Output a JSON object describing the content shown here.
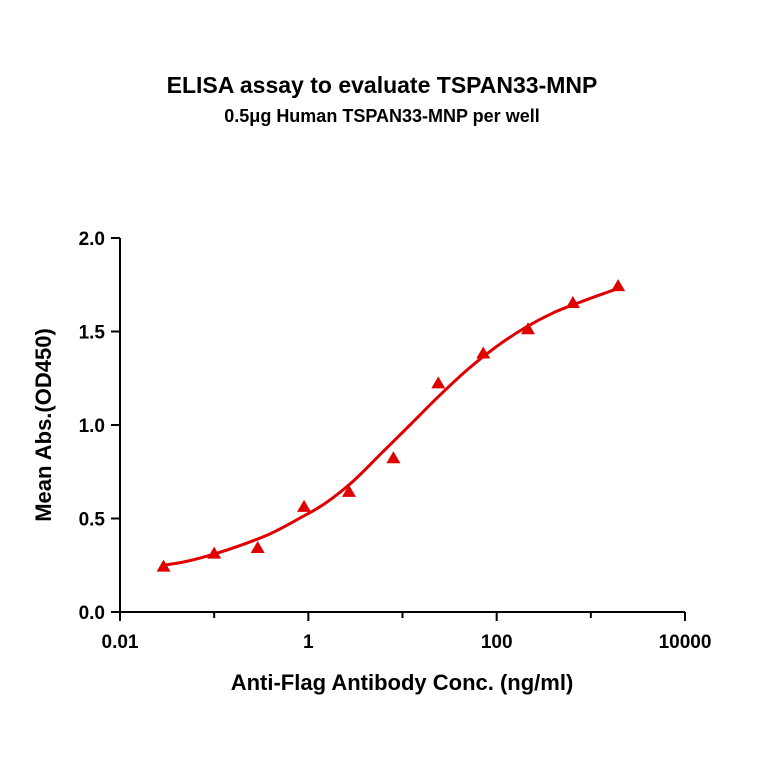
{
  "chart_data": {
    "type": "scatter",
    "title": "ELISA assay to evaluate TSPAN33-MNP",
    "subtitle": "0.5μg Human TSPAN33-MNP per well",
    "xlabel": "Anti-Flag Antibody Conc. (ng/ml)",
    "ylabel": "Mean Abs.(OD450)",
    "xscale": "log",
    "xlim": [
      0.01,
      10000
    ],
    "ylim": [
      0.0,
      2.0
    ],
    "xticks": [
      "0.01",
      "1",
      "100",
      "10000"
    ],
    "yticks": [
      "0.0",
      "0.5",
      "1.0",
      "1.5",
      "2.0"
    ],
    "grid": false,
    "marker_color": "#e00000",
    "curve_color": "#e00000",
    "series": [
      {
        "marker": "triangle",
        "x": [
          0.029,
          0.1,
          0.29,
          0.9,
          2.7,
          8.0,
          24.0,
          72.0,
          215.0,
          645.0,
          1950.0
        ],
        "y": [
          0.24,
          0.31,
          0.34,
          0.56,
          0.64,
          0.82,
          1.22,
          1.38,
          1.51,
          1.65,
          1.74
        ]
      }
    ],
    "fit_curve": {
      "x": [
        0.029,
        0.05,
        0.1,
        0.2,
        0.4,
        0.8,
        1.5,
        3,
        6,
        12,
        25,
        50,
        100,
        200,
        400,
        800,
        1500,
        1950
      ],
      "y": [
        0.25,
        0.27,
        0.31,
        0.36,
        0.42,
        0.5,
        0.58,
        0.7,
        0.85,
        1.0,
        1.16,
        1.3,
        1.42,
        1.52,
        1.6,
        1.66,
        1.71,
        1.73
      ]
    }
  }
}
